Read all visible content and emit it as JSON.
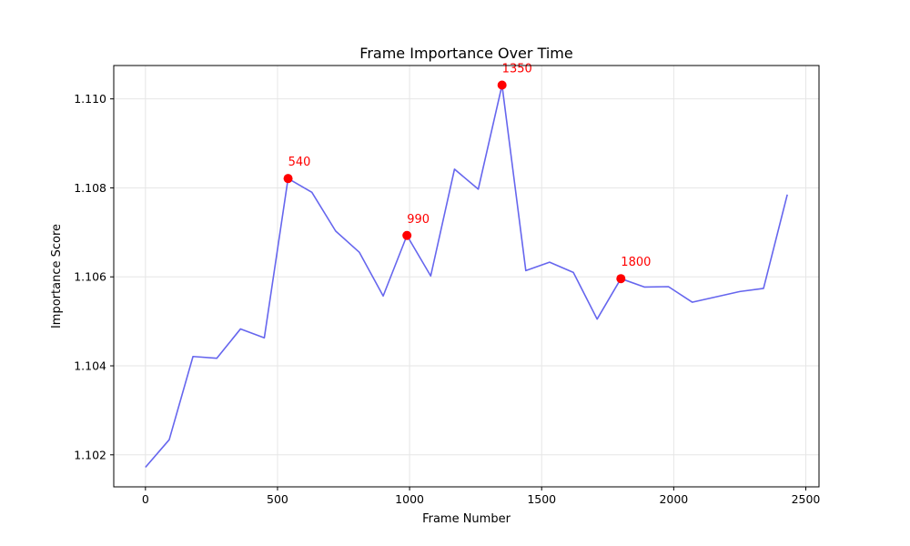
{
  "chart_data": {
    "type": "line",
    "title": "Frame Importance Over Time",
    "xlabel": "Frame Number",
    "ylabel": "Importance Score",
    "xlim": [
      -120,
      2550
    ],
    "ylim": [
      1.10128,
      1.11075
    ],
    "xticks": [
      0,
      500,
      1000,
      1500,
      2000,
      2500
    ],
    "xtick_labels": [
      "0",
      "500",
      "1000",
      "1500",
      "2000",
      "2500"
    ],
    "yticks": [
      1.102,
      1.104,
      1.106,
      1.108,
      1.11
    ],
    "ytick_labels": [
      "1.102",
      "1.104",
      "1.106",
      "1.108",
      "1.110"
    ],
    "grid": true,
    "line_color": "#6666ee",
    "peak_color": "#ff0000",
    "series": [
      {
        "x": [
          0,
          90,
          180,
          270,
          360,
          450,
          540,
          630,
          720,
          810,
          900,
          990,
          1080,
          1170,
          1260,
          1350,
          1440,
          1530,
          1620,
          1710,
          1800,
          1890,
          1980,
          2070,
          2160,
          2250,
          2340,
          2430
        ],
        "y": [
          1.10172,
          1.10234,
          1.10421,
          1.10417,
          1.10483,
          1.10463,
          1.10821,
          1.1079,
          1.10703,
          1.10655,
          1.10557,
          1.10693,
          1.10602,
          1.10842,
          1.10797,
          1.11031,
          1.10614,
          1.10633,
          1.1061,
          1.10505,
          1.10596,
          1.10577,
          1.10578,
          1.10543,
          1.10555,
          1.10567,
          1.10574,
          1.10785
        ]
      }
    ],
    "peaks": [
      {
        "x": 540,
        "y": 1.10821,
        "label": "540"
      },
      {
        "x": 990,
        "y": 1.10693,
        "label": "990"
      },
      {
        "x": 1350,
        "y": 1.11031,
        "label": "1350"
      },
      {
        "x": 1800,
        "y": 1.10596,
        "label": "1800"
      }
    ]
  }
}
